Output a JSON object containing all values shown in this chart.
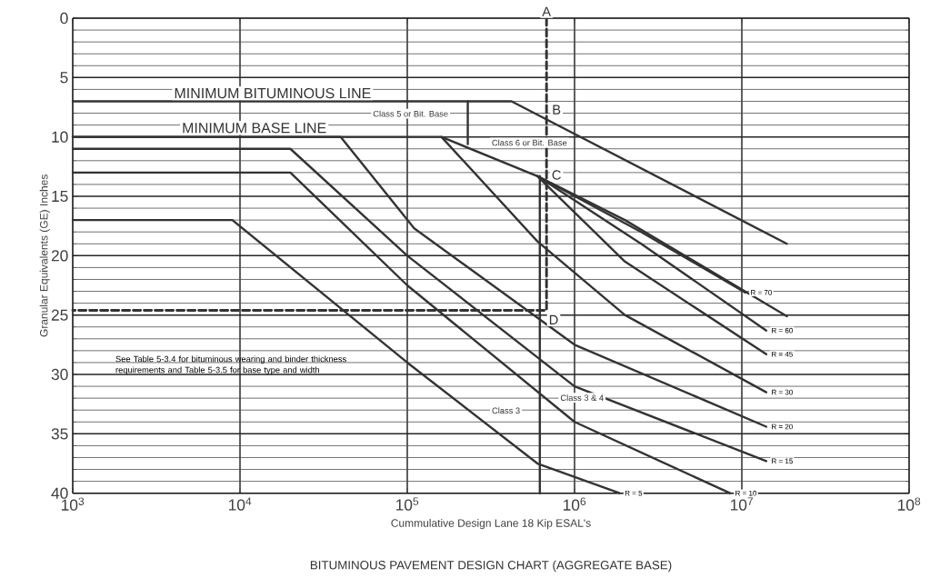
{
  "chart_data": {
    "type": "line",
    "title": "BITUMINOUS PAVEMENT DESIGN CHART (AGGREGATE BASE)",
    "xlabel": "Cummulative Design Lane 18 Kip ESAL's",
    "ylabel": "Granular Equivalents (GE) Inches",
    "log": "x",
    "grid": true,
    "legend": false,
    "marker": "none",
    "xlim": [
      1000,
      100000000
    ],
    "ylim": [
      40,
      0
    ],
    "xticks": [
      {
        "value": 1000,
        "label": "10$^{3}$"
      },
      {
        "value": 10000,
        "label": "10$^{4}$"
      },
      {
        "value": 100000,
        "label": "10$^{5}$"
      },
      {
        "value": 1000000,
        "label": "10$^{6}$"
      },
      {
        "value": 10000000,
        "label": "10$^{7}$"
      },
      {
        "value": 100000000,
        "label": "10$^{8}$"
      }
    ],
    "yticks": [
      0,
      5,
      10,
      15,
      20,
      25,
      30,
      35,
      40
    ],
    "series": [
      {
        "name": "MINIMUM BITUMINOUS LINE",
        "color": "#333333",
        "x": [
          1000,
          420000,
          18600000
        ],
        "values": [
          7,
          7,
          19.0
        ]
      },
      {
        "name": "MINIMUM BASE LINE",
        "color": "#333333",
        "x": [
          1000,
          160000,
          600000,
          2000000,
          18600000
        ],
        "values": [
          10,
          10,
          13.3,
          17,
          25.1
        ]
      },
      {
        "name": "R = 70",
        "color": "#333333",
        "x": [
          600000,
          2500000,
          10500000
        ],
        "values": [
          13.3,
          18,
          23.1
        ]
      },
      {
        "name": "R = 60",
        "color": "#333333",
        "x": [
          600000,
          2500000,
          14000000
        ],
        "values": [
          13.3,
          19,
          26.3
        ]
      },
      {
        "name": "R = 45",
        "color": "#333333",
        "x": [
          600000,
          2000000,
          14000000
        ],
        "values": [
          13.3,
          20.5,
          28.3
        ]
      },
      {
        "name": "R = 30",
        "color": "#333333",
        "x": [
          160000,
          600000,
          2000000,
          14000000
        ],
        "values": [
          10,
          18.8,
          25,
          31.5
        ]
      },
      {
        "name": "R = 20",
        "color": "#333333",
        "x": [
          1000,
          40000,
          110000,
          1000000,
          14000000
        ],
        "values": [
          10,
          10,
          17.7,
          27.5,
          34.4
        ]
      },
      {
        "name": "R = 15",
        "color": "#333333",
        "x": [
          1000,
          20000,
          100000,
          1000000,
          14000000
        ],
        "values": [
          11,
          11,
          20,
          31,
          37.3
        ]
      },
      {
        "name": "R = 10",
        "color": "#333333",
        "x": [
          1000,
          20000,
          100000,
          1000000,
          8500000
        ],
        "values": [
          13,
          13,
          22.5,
          34,
          40
        ]
      },
      {
        "name": "R = 5",
        "color": "#333333",
        "x": [
          1000,
          9000,
          100000,
          600000,
          1860000
        ],
        "values": [
          17,
          17,
          29,
          37.5,
          40
        ]
      },
      {
        "color": "#333333",
        "line_style": "dashed",
        "x": [
          680000,
          680000,
          1000
        ],
        "values": [
          0,
          24.6,
          24.6
        ]
      },
      {
        "color": "#333333",
        "x": [
          620000,
          620000
        ],
        "values": [
          13.3,
          40
        ]
      },
      {
        "color": "#333333",
        "x": [
          230000,
          230000
        ],
        "values": [
          7,
          10.6
        ]
      }
    ],
    "annotations": [
      "Class 5 or Bit. Base",
      "Class 6 or Bit. Base",
      "Class 3",
      "Class 3 & 4",
      "See Table 5-3.4 for bituminous wearing and binder thickness requirements and Table 5-3.5 for base type and width",
      {
        "text": "A",
        "x": 680000,
        "y": 0
      },
      {
        "text": "B",
        "x": 780000,
        "y": 7.7
      },
      {
        "text": "C",
        "x": 780000,
        "y": 13.2
      },
      {
        "text": "D",
        "x": 750000,
        "y": 25.4
      }
    ]
  }
}
